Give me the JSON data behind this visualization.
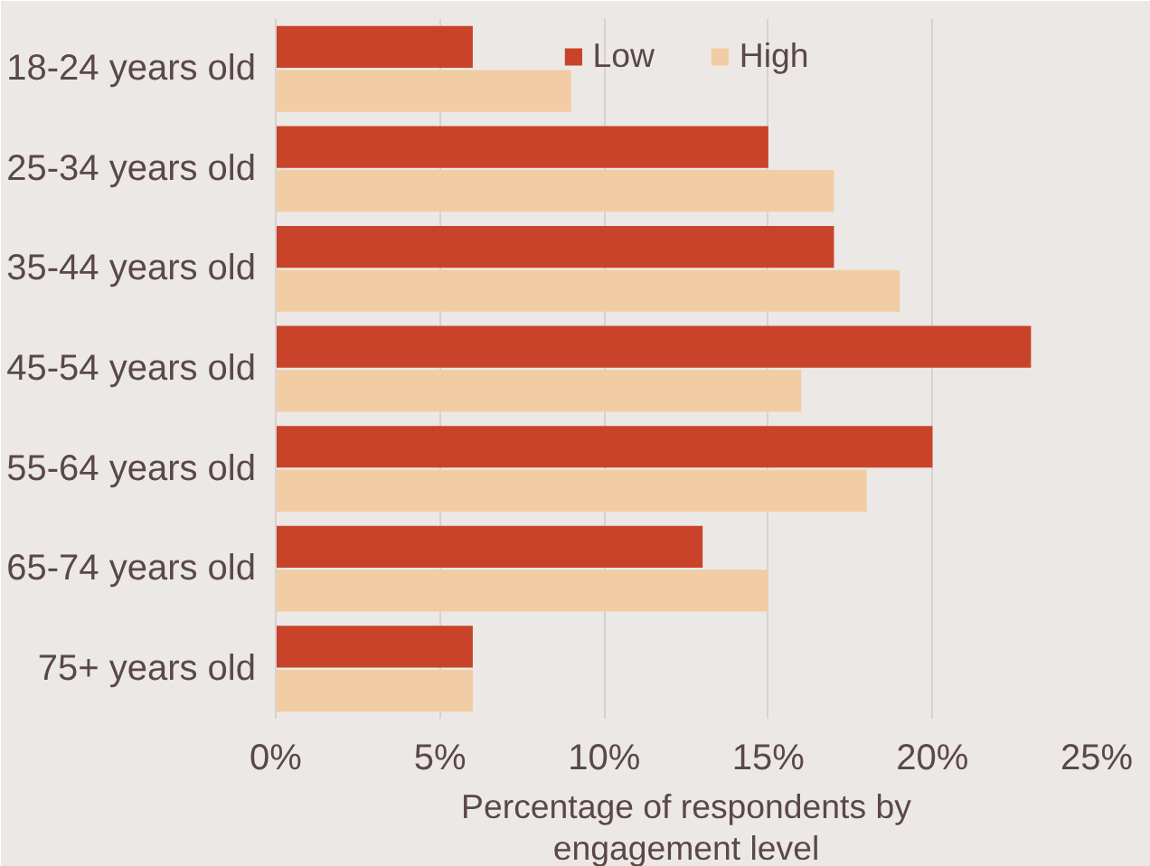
{
  "chart_data": {
    "type": "bar",
    "orientation": "horizontal",
    "xlabel": "Percentage of respondents by engagement level",
    "categories": [
      "18-24 years old",
      "25-34 years old",
      "35-44 years old",
      "45-54 years old",
      "55-64 years old",
      "65-74 years old",
      "75+ years old"
    ],
    "series": [
      {
        "name": "Low",
        "color": "#c8432a",
        "values": [
          6,
          15,
          17,
          23,
          20,
          13,
          6
        ]
      },
      {
        "name": "High",
        "color": "#f2cda3",
        "values": [
          9,
          17,
          19,
          16,
          18,
          15,
          6
        ]
      }
    ],
    "xlim": [
      0,
      25
    ],
    "xticks": [
      {
        "value": 0,
        "label": "0%"
      },
      {
        "value": 5,
        "label": "5%"
      },
      {
        "value": 10,
        "label": "10%"
      },
      {
        "value": 15,
        "label": "15%"
      },
      {
        "value": 20,
        "label": "20%"
      },
      {
        "value": 25,
        "label": "25%"
      }
    ],
    "grid": "x",
    "legend": "top"
  }
}
